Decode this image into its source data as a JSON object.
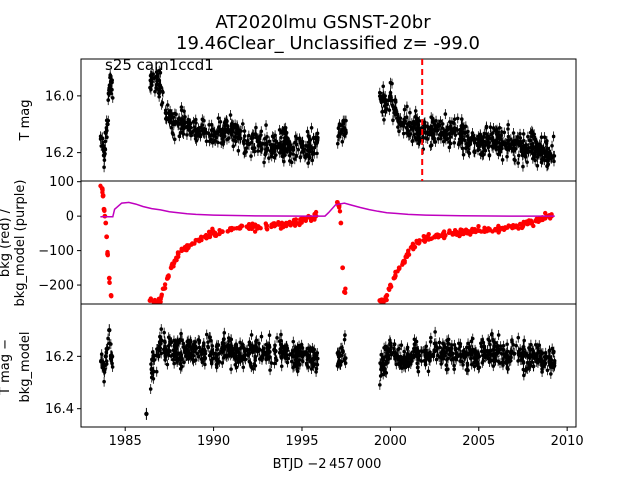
{
  "chart_data": {
    "type": "scatter",
    "title_line1": "AT2020lmu  GSNST-20br",
    "title_line2": "19.46Clear_ Unclassified z= -99.0",
    "annotation": "s25 cam1ccd1",
    "xlabel": "BTJD −2 457 000",
    "xlim": [
      1982.5,
      2010.5
    ],
    "x_ticks": [
      1985,
      1990,
      1995,
      2000,
      2005,
      2010
    ],
    "x_tick_labels": [
      "1985",
      "1990",
      "1995",
      "2000",
      "2005",
      "2010"
    ],
    "vline_x": 2001.8,
    "segments": [
      [
        1983.6,
        1984.3
      ],
      [
        1986.4,
        1995.9
      ],
      [
        1997.0,
        1997.5
      ],
      [
        1999.4,
        2009.3
      ]
    ],
    "panels": [
      {
        "id": "tmag",
        "ylabel": "T mag",
        "ylim": [
          16.3,
          15.87
        ],
        "y_ticks": [
          16.0,
          16.2
        ],
        "y_tick_labels": [
          "16.0",
          "16.2"
        ],
        "series": [
          {
            "color": "#000000",
            "errorbars": true,
            "points": [
              [
                1983.7,
                16.15
              ],
              [
                1983.8,
                16.21
              ],
              [
                1983.9,
                16.13
              ],
              [
                1984.0,
                16.1
              ],
              [
                1984.1,
                15.98
              ],
              [
                1984.2,
                15.95
              ],
              [
                1986.5,
                15.95
              ],
              [
                1986.8,
                15.96
              ],
              [
                1987.0,
                15.97
              ],
              [
                1987.3,
                16.06
              ],
              [
                1987.5,
                16.08
              ],
              [
                1988.0,
                16.1
              ],
              [
                1988.5,
                16.11
              ],
              [
                1989.0,
                16.12
              ],
              [
                1989.5,
                16.13
              ],
              [
                1990.0,
                16.14
              ],
              [
                1990.5,
                16.13
              ],
              [
                1991.0,
                16.12
              ],
              [
                1991.5,
                16.15
              ],
              [
                1992.0,
                16.17
              ],
              [
                1992.5,
                16.16
              ],
              [
                1993.0,
                16.17
              ],
              [
                1993.5,
                16.18
              ],
              [
                1994.0,
                16.17
              ],
              [
                1994.5,
                16.19
              ],
              [
                1995.0,
                16.17
              ],
              [
                1995.5,
                16.18
              ],
              [
                1997.1,
                16.14
              ],
              [
                1997.3,
                16.12
              ],
              [
                1999.5,
                16.02
              ],
              [
                1999.8,
                16.03
              ],
              [
                2000.0,
                16.0
              ],
              [
                2000.3,
                16.05
              ],
              [
                2000.6,
                16.1
              ],
              [
                2001.0,
                16.1
              ],
              [
                2001.5,
                16.12
              ],
              [
                2002.0,
                16.13
              ],
              [
                2002.5,
                16.12
              ],
              [
                2003.0,
                16.13
              ],
              [
                2003.5,
                16.13
              ],
              [
                2004.0,
                16.14
              ],
              [
                2004.5,
                16.17
              ],
              [
                2005.0,
                16.17
              ],
              [
                2005.5,
                16.15
              ],
              [
                2006.0,
                16.16
              ],
              [
                2006.5,
                16.17
              ],
              [
                2007.0,
                16.16
              ],
              [
                2007.5,
                16.18
              ],
              [
                2008.0,
                16.18
              ],
              [
                2008.5,
                16.19
              ],
              [
                2009.0,
                16.2
              ]
            ]
          }
        ]
      },
      {
        "id": "bkg",
        "ylabel_line1": "bkg (red) /",
        "ylabel_line2": "bkg_model (purple)",
        "ylim": [
          -255,
          102
        ],
        "y_ticks": [
          100,
          0,
          -100,
          -200
        ],
        "y_tick_labels": [
          "100",
          "0",
          "−100",
          "−200"
        ],
        "series": [
          {
            "name": "bkg",
            "color": "#ff0000",
            "points": [
              [
                1983.7,
                80
              ],
              [
                1983.75,
                60
              ],
              [
                1983.8,
                20
              ],
              [
                1983.85,
                0
              ],
              [
                1983.9,
                -20
              ],
              [
                1983.95,
                -60
              ],
              [
                1984.0,
                -110
              ],
              [
                1984.1,
                -180
              ],
              [
                1984.2,
                -230
              ],
              [
                1986.4,
                -245
              ],
              [
                1986.6,
                -248
              ],
              [
                1986.8,
                -250
              ],
              [
                1987.0,
                -240
              ],
              [
                1987.2,
                -210
              ],
              [
                1987.4,
                -180
              ],
              [
                1987.6,
                -150
              ],
              [
                1987.8,
                -130
              ],
              [
                1988.0,
                -110
              ],
              [
                1988.2,
                -100
              ],
              [
                1988.5,
                -90
              ],
              [
                1988.8,
                -80
              ],
              [
                1989.0,
                -70
              ],
              [
                1989.5,
                -60
              ],
              [
                1990.0,
                -50
              ],
              [
                1990.5,
                -45
              ],
              [
                1991.0,
                -40
              ],
              [
                1991.5,
                -35
              ],
              [
                1992.0,
                -33
              ],
              [
                1992.5,
                -30
              ],
              [
                1993.0,
                -28
              ],
              [
                1993.5,
                -26
              ],
              [
                1994.0,
                -24
              ],
              [
                1994.5,
                -20
              ],
              [
                1995.0,
                -12
              ],
              [
                1995.5,
                -5
              ],
              [
                1997.0,
                40
              ],
              [
                1997.1,
                30
              ],
              [
                1997.2,
                -20
              ],
              [
                1997.3,
                -150
              ],
              [
                1997.4,
                -220
              ],
              [
                1999.4,
                -245
              ],
              [
                1999.6,
                -250
              ],
              [
                1999.8,
                -230
              ],
              [
                2000.0,
                -200
              ],
              [
                2000.2,
                -180
              ],
              [
                2000.5,
                -150
              ],
              [
                2000.8,
                -130
              ],
              [
                2001.0,
                -110
              ],
              [
                2001.3,
                -90
              ],
              [
                2001.6,
                -75
              ],
              [
                2002.0,
                -65
              ],
              [
                2002.5,
                -60
              ],
              [
                2003.0,
                -55
              ],
              [
                2003.5,
                -50
              ],
              [
                2004.0,
                -45
              ],
              [
                2004.5,
                -45
              ],
              [
                2005.0,
                -42
              ],
              [
                2005.5,
                -40
              ],
              [
                2006.0,
                -38
              ],
              [
                2006.5,
                -35
              ],
              [
                2007.0,
                -32
              ],
              [
                2007.5,
                -28
              ],
              [
                2008.0,
                -20
              ],
              [
                2008.5,
                -10
              ],
              [
                2009.0,
                2
              ]
            ]
          },
          {
            "name": "bkg_model",
            "color": "#bf00bf",
            "points": [
              [
                1983.6,
                -2
              ],
              [
                1984.3,
                -2
              ],
              [
                1984.4,
                20
              ],
              [
                1984.8,
                38
              ],
              [
                1985.2,
                40
              ],
              [
                1985.6,
                35
              ],
              [
                1986.0,
                28
              ],
              [
                1986.5,
                22
              ],
              [
                1987.0,
                18
              ],
              [
                1987.5,
                13
              ],
              [
                1988.0,
                10
              ],
              [
                1988.5,
                7
              ],
              [
                1989.0,
                5
              ],
              [
                1990.0,
                3
              ],
              [
                1992.0,
                1
              ],
              [
                1995.0,
                0
              ],
              [
                1996.3,
                0
              ],
              [
                1996.5,
                10
              ],
              [
                1996.9,
                33
              ],
              [
                1997.4,
                38
              ],
              [
                1997.8,
                32
              ],
              [
                1998.3,
                25
              ],
              [
                1998.8,
                19
              ],
              [
                1999.3,
                14
              ],
              [
                1999.8,
                10
              ],
              [
                2000.3,
                8
              ],
              [
                2001.0,
                5
              ],
              [
                2002.0,
                3
              ],
              [
                2004.0,
                1
              ],
              [
                2007.0,
                0
              ],
              [
                2009.3,
                0
              ]
            ]
          }
        ]
      },
      {
        "id": "resid",
        "ylabel_line1": "T mag −",
        "ylabel_line2": "bkg_model",
        "ylim": [
          16.47,
          16.0
        ],
        "y_ticks": [
          16.2,
          16.4
        ],
        "y_tick_labels": [
          "16.2",
          "16.4"
        ],
        "series": [
          {
            "color": "#000000",
            "errorbars": true,
            "points": [
              [
                1983.7,
                16.22
              ],
              [
                1983.8,
                16.25
              ],
              [
                1983.9,
                16.2
              ],
              [
                1984.0,
                16.17
              ],
              [
                1984.1,
                16.1
              ],
              [
                1984.2,
                16.2
              ],
              [
                1986.2,
                16.42
              ],
              [
                1986.5,
                16.25
              ],
              [
                1987.0,
                16.15
              ],
              [
                1987.5,
                16.18
              ],
              [
                1988.0,
                16.19
              ],
              [
                1988.5,
                16.18
              ],
              [
                1989.0,
                16.17
              ],
              [
                1989.5,
                16.18
              ],
              [
                1990.0,
                16.19
              ],
              [
                1990.5,
                16.17
              ],
              [
                1991.0,
                16.18
              ],
              [
                1991.5,
                16.2
              ],
              [
                1992.0,
                16.19
              ],
              [
                1992.5,
                16.18
              ],
              [
                1993.0,
                16.19
              ],
              [
                1993.5,
                16.18
              ],
              [
                1994.0,
                16.19
              ],
              [
                1994.5,
                16.2
              ],
              [
                1995.0,
                16.19
              ],
              [
                1995.5,
                16.22
              ],
              [
                1997.1,
                16.2
              ],
              [
                1997.3,
                16.18
              ],
              [
                1999.5,
                16.25
              ],
              [
                1999.8,
                16.2
              ],
              [
                2000.0,
                16.15
              ],
              [
                2000.3,
                16.2
              ],
              [
                2000.6,
                16.22
              ],
              [
                2001.0,
                16.2
              ],
              [
                2001.5,
                16.19
              ],
              [
                2002.0,
                16.2
              ],
              [
                2002.5,
                16.18
              ],
              [
                2003.0,
                16.19
              ],
              [
                2003.5,
                16.19
              ],
              [
                2004.0,
                16.2
              ],
              [
                2004.5,
                16.19
              ],
              [
                2005.0,
                16.2
              ],
              [
                2005.5,
                16.18
              ],
              [
                2006.0,
                16.19
              ],
              [
                2006.5,
                16.2
              ],
              [
                2007.0,
                16.19
              ],
              [
                2007.5,
                16.2
              ],
              [
                2008.0,
                16.2
              ],
              [
                2008.5,
                16.21
              ],
              [
                2009.0,
                16.22
              ]
            ]
          }
        ]
      }
    ]
  }
}
